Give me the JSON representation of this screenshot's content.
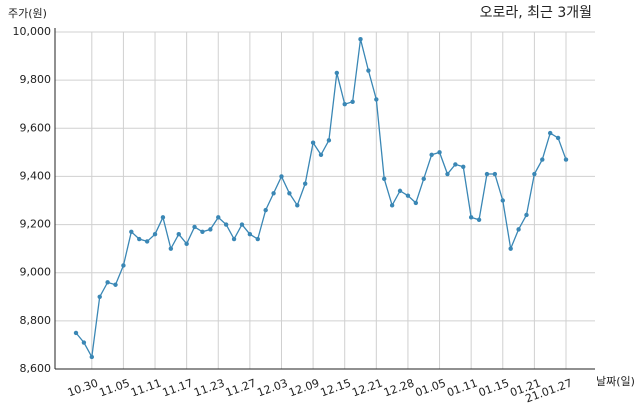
{
  "chart_data": {
    "type": "line",
    "title": "오로라, 최근 3개월",
    "y_label": "주가(원)",
    "x_label": "날짜(일)",
    "categories": [
      null,
      null,
      "10.30",
      null,
      null,
      null,
      "11.05",
      null,
      null,
      null,
      "11.11",
      null,
      null,
      null,
      "11.17",
      null,
      null,
      null,
      "11.23",
      null,
      null,
      null,
      "11.27",
      null,
      null,
      null,
      "12.03",
      null,
      null,
      null,
      "12.09",
      null,
      null,
      null,
      "12.15",
      null,
      null,
      null,
      "12.21",
      null,
      null,
      null,
      "12.28",
      null,
      null,
      null,
      "01.05",
      null,
      null,
      null,
      "01.11",
      null,
      null,
      null,
      "01.15",
      null,
      null,
      null,
      "01.21",
      null,
      null,
      null,
      "21.01.27"
    ],
    "series": [
      {
        "name": "주가",
        "color": "#3a87b5",
        "values": [
          8750,
          8710,
          8650,
          8900,
          8960,
          8950,
          9030,
          9170,
          9140,
          9130,
          9160,
          9230,
          9100,
          9160,
          9120,
          9190,
          9170,
          9180,
          9230,
          9200,
          9140,
          9200,
          9160,
          9140,
          9260,
          9330,
          9400,
          9330,
          9280,
          9370,
          9540,
          9490,
          9550,
          9830,
          9700,
          9710,
          9970,
          9840,
          9720,
          9390,
          9280,
          9340,
          9320,
          9290,
          9390,
          9490,
          9500,
          9410,
          9450,
          9440,
          9230,
          9220,
          9410,
          9410,
          9300,
          9100,
          9180,
          9240,
          9410,
          9470,
          9580,
          9560,
          9470
        ]
      }
    ],
    "ylim": [
      8600,
      10000
    ],
    "yticks": [
      {
        "value": 8600,
        "label": "8,600"
      },
      {
        "value": 8800,
        "label": "8,800"
      },
      {
        "value": 9000,
        "label": "9,000"
      },
      {
        "value": 9200,
        "label": "9,200"
      },
      {
        "value": 9400,
        "label": "9,400"
      },
      {
        "value": 9600,
        "label": "9,600"
      },
      {
        "value": 9800,
        "label": "9,800"
      },
      {
        "value": 10000,
        "label": "10,000"
      }
    ],
    "grid": true
  }
}
